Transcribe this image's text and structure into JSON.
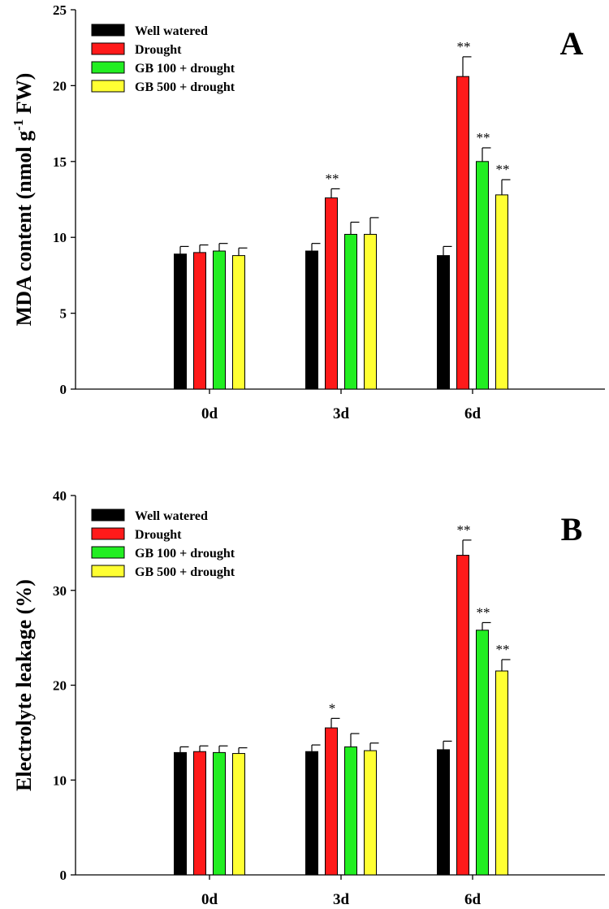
{
  "colors": {
    "Well watered": "#000000",
    "Drought": "#ff1a1a",
    "GB 100 + drought": "#22ee22",
    "GB 500 + drought": "#ffff33"
  },
  "chart_data": [
    {
      "type": "bar",
      "panel_label": "A",
      "title": "",
      "xlabel": "",
      "ylabel": "MDA content (nmol g",
      "ylabel_sup": "-1",
      "ylabel_end": " FW)",
      "ylim": [
        0,
        25
      ],
      "yticks": [
        0,
        5,
        10,
        15,
        20,
        25
      ],
      "categories": [
        "0d",
        "3d",
        "6d"
      ],
      "legend_position": "top-left",
      "grid": false,
      "series": [
        {
          "name": "Well watered",
          "values": [
            8.9,
            9.1,
            8.8
          ],
          "errors": [
            0.5,
            0.5,
            0.6
          ],
          "sig": [
            "",
            "",
            ""
          ]
        },
        {
          "name": "Drought",
          "values": [
            9.0,
            12.6,
            20.6
          ],
          "errors": [
            0.5,
            0.6,
            1.3
          ],
          "sig": [
            "",
            "**",
            "**"
          ]
        },
        {
          "name": "GB 100 + drought",
          "values": [
            9.1,
            10.2,
            15.0
          ],
          "errors": [
            0.5,
            0.8,
            0.9
          ],
          "sig": [
            "",
            "",
            "**"
          ]
        },
        {
          "name": "GB 500 + drought",
          "values": [
            8.8,
            10.2,
            12.8
          ],
          "errors": [
            0.5,
            1.1,
            1.0
          ],
          "sig": [
            "",
            "",
            "**"
          ]
        }
      ]
    },
    {
      "type": "bar",
      "panel_label": "B",
      "title": "",
      "xlabel": "",
      "ylabel": "Electrolyte leakage (%)",
      "ylabel_sup": "",
      "ylabel_end": "",
      "ylim": [
        0,
        40
      ],
      "yticks": [
        0,
        10,
        20,
        30,
        40
      ],
      "categories": [
        "0d",
        "3d",
        "6d"
      ],
      "legend_position": "top-left",
      "grid": false,
      "series": [
        {
          "name": "Well watered",
          "values": [
            12.9,
            13.0,
            13.2
          ],
          "errors": [
            0.6,
            0.7,
            0.9
          ],
          "sig": [
            "",
            "",
            ""
          ]
        },
        {
          "name": "Drought",
          "values": [
            13.0,
            15.5,
            33.7
          ],
          "errors": [
            0.6,
            1.0,
            1.6
          ],
          "sig": [
            "",
            "*",
            "**"
          ]
        },
        {
          "name": "GB 100 + drought",
          "values": [
            12.9,
            13.5,
            25.8
          ],
          "errors": [
            0.7,
            1.4,
            0.8
          ],
          "sig": [
            "",
            "",
            "**"
          ]
        },
        {
          "name": "GB 500 + drought",
          "values": [
            12.8,
            13.1,
            21.5
          ],
          "errors": [
            0.6,
            0.8,
            1.2
          ],
          "sig": [
            "",
            "",
            "**"
          ]
        }
      ]
    }
  ]
}
